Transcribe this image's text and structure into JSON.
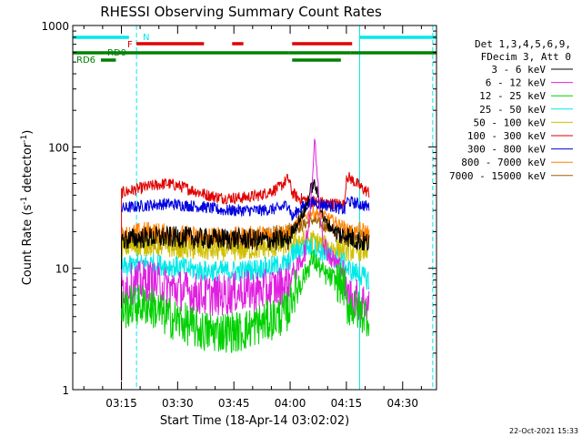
{
  "chart_data": {
    "type": "line",
    "title": "RHESSI Observing Summary Count Rates",
    "xlabel": "Start Time (18-Apr-14 03:02:02)",
    "ylabel_parts": {
      "main": "Count Rate (s",
      "sup": "-1",
      "tail": " detector",
      "sup2": "-1",
      "end": ")"
    },
    "footer": "22-Oct-2021 15:33",
    "x_unit": "minutes since 03:02:02 UT",
    "xlim": [
      0,
      97
    ],
    "ylim": [
      1,
      1000
    ],
    "yscale": "log",
    "x_ticks": [
      {
        "label": "03:15",
        "x": 12.97
      },
      {
        "label": "03:30",
        "x": 27.97
      },
      {
        "label": "03:45",
        "x": 42.97
      },
      {
        "label": "04:00",
        "x": 57.97
      },
      {
        "label": "04:15",
        "x": 72.97
      },
      {
        "label": "04:30",
        "x": 87.97
      }
    ],
    "y_ticks": [
      {
        "label": "1",
        "y": 1
      },
      {
        "label": "10",
        "y": 10
      },
      {
        "label": "100",
        "y": 100
      },
      {
        "label": "1000",
        "y": 1000
      }
    ],
    "legend_header": [
      "Det 1,3,4,5,6,9,",
      "FDecim 3, Att 0"
    ],
    "series": [
      {
        "name": "3 - 6 keV",
        "color": "#000000",
        "x": [
          13,
          16,
          20,
          25,
          30,
          35,
          40,
          45,
          50,
          55,
          57.5,
          58.5,
          60,
          62,
          63.5,
          64.5,
          65.5,
          67,
          70,
          72.5,
          73,
          73.5,
          76,
          79
        ],
        "y": [
          17,
          17.5,
          18,
          18,
          18,
          17.5,
          17.5,
          17.5,
          17,
          17,
          17,
          20,
          24,
          30,
          45,
          50,
          38,
          25,
          20,
          18,
          20,
          18,
          17,
          16
        ]
      },
      {
        "name": "6 - 12 keV",
        "color": "#e020e0",
        "x": [
          13,
          16,
          20,
          25,
          30,
          35,
          40,
          45,
          50,
          55,
          57.5,
          58.5,
          60,
          62,
          63,
          64,
          64.5,
          65,
          66,
          67,
          69,
          72,
          73,
          76,
          79
        ],
        "y": [
          7,
          7.5,
          8,
          7,
          6.5,
          6,
          6,
          6.5,
          6.5,
          7,
          7.5,
          9,
          10,
          14,
          25,
          60,
          120,
          70,
          28,
          16,
          12,
          10,
          6,
          5.5,
          5
        ]
      },
      {
        "name": "12 - 25 keV",
        "color": "#00d000",
        "x": [
          13,
          16,
          20,
          25,
          30,
          35,
          40,
          45,
          50,
          55,
          57.5,
          58.5,
          60,
          62,
          64,
          65,
          67,
          70,
          72.5,
          73,
          76,
          79
        ],
        "y": [
          4.5,
          5,
          5,
          4,
          3.5,
          3,
          3,
          3,
          3.5,
          4,
          4.5,
          6,
          7,
          9,
          12,
          11,
          9,
          8,
          7,
          5,
          4.5,
          4
        ]
      },
      {
        "name": "25 - 50 keV",
        "color": "#00e8e8",
        "x": [
          13,
          16,
          20,
          25,
          30,
          35,
          40,
          45,
          50,
          55,
          57.5,
          58.5,
          60,
          62,
          64,
          66,
          68,
          70,
          72.5,
          73,
          76,
          79
        ],
        "y": [
          10,
          10.5,
          11,
          10.5,
          10,
          9.5,
          9.5,
          9.5,
          10,
          10.5,
          11,
          13,
          14,
          15,
          15,
          14,
          13,
          12,
          11,
          10,
          9,
          8
        ]
      },
      {
        "name": "50 - 100 keV",
        "color": "#d0c000",
        "x": [
          13,
          16,
          20,
          25,
          30,
          35,
          40,
          45,
          50,
          55,
          57.5,
          58.5,
          60,
          62,
          64,
          66,
          68,
          70,
          72.5,
          73,
          76,
          79
        ],
        "y": [
          15,
          15,
          15.5,
          15,
          14.5,
          14,
          14,
          14,
          14.5,
          15,
          15.5,
          16,
          17,
          17,
          17,
          16,
          15,
          14.5,
          14,
          14,
          14,
          14
        ]
      },
      {
        "name": "100 - 300 keV",
        "color": "#e00000",
        "x": [
          13,
          16,
          20,
          25,
          28,
          32,
          36,
          40,
          45,
          50,
          55,
          57.5,
          58.5,
          60,
          63,
          66,
          69,
          72,
          72.5,
          73,
          75,
          77,
          79
        ],
        "y": [
          42,
          44,
          47,
          50,
          48,
          44,
          40,
          38,
          38,
          40,
          46,
          55,
          42,
          38,
          36,
          35,
          34,
          34,
          33,
          58,
          52,
          46,
          42
        ]
      },
      {
        "name": "300 - 800 keV",
        "color": "#0000e0",
        "x": [
          13,
          16,
          20,
          25,
          30,
          35,
          40,
          45,
          50,
          55,
          57.5,
          58.5,
          60,
          62,
          64,
          66,
          68,
          70,
          72.5,
          73,
          76,
          79
        ],
        "y": [
          31,
          32,
          33,
          34,
          33,
          32,
          30,
          30,
          30,
          31,
          34,
          26,
          30,
          33,
          35,
          34,
          33,
          32,
          30,
          36,
          34,
          32
        ]
      },
      {
        "name": "800 - 7000 keV",
        "color": "#ff8000",
        "x": [
          13,
          16,
          20,
          25,
          30,
          35,
          40,
          45,
          50,
          55,
          57.5,
          58.5,
          60,
          62,
          64,
          66,
          68,
          70,
          72.5,
          73,
          76,
          79
        ],
        "y": [
          18,
          19,
          20,
          19,
          18.5,
          18,
          18,
          18,
          18.5,
          19,
          20,
          21,
          24,
          27,
          29,
          28,
          26,
          24,
          22,
          21,
          20,
          19
        ]
      },
      {
        "name": "7000 - 15000 keV",
        "color": "#a06000",
        "x": [
          13,
          20,
          30,
          40,
          50,
          58,
          64,
          70,
          79
        ],
        "y": [
          17,
          17.5,
          17,
          17,
          17,
          20,
          25,
          20,
          17
        ]
      }
    ],
    "flags": [
      {
        "label": "N",
        "color": "#00e8e8",
        "segments": [
          [
            0,
            15
          ],
          [
            76.5,
            97
          ]
        ]
      },
      {
        "label": "F",
        "color": "#e00000",
        "segments": [
          [
            17,
            35
          ],
          [
            42.5,
            45.5
          ],
          [
            58.5,
            74.5
          ]
        ]
      },
      {
        "label": "RD0",
        "color": "#008000",
        "segments": [
          [
            0,
            8.5
          ],
          [
            8.5,
            57.5
          ],
          [
            57.5,
            74
          ],
          [
            74,
            97
          ]
        ]
      },
      {
        "label": "RD6",
        "color": "#008000",
        "segments": [
          [
            7.5,
            11.5
          ],
          [
            58.5,
            71.5
          ]
        ]
      }
    ],
    "vlines": [
      {
        "x": 0,
        "color": "#00e8e8",
        "style": "solid"
      },
      {
        "x": 17,
        "color": "#00e8e8",
        "style": "dashed"
      },
      {
        "x": 76.5,
        "color": "#00e8e8",
        "style": "solid"
      },
      {
        "x": 96,
        "color": "#00e8e8",
        "style": "dashed"
      }
    ],
    "grid": false,
    "legend_position": "right"
  }
}
